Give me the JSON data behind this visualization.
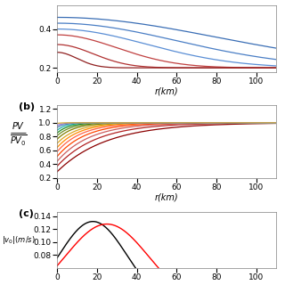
{
  "r_max": 110,
  "r_points": 500,
  "panel_a": {
    "ylim": [
      0.18,
      0.52
    ],
    "yticks": [
      0.2,
      0.4
    ],
    "colors": [
      "#1c6bb0",
      "#3a7fc1",
      "#5b8fd1",
      "#2060a0",
      "#c44040",
      "#c85050",
      "#c86060",
      "#d07070",
      "#b03030",
      "#903030",
      "#702020",
      "#501010"
    ]
  },
  "panel_b": {
    "ylim": [
      0.2,
      1.25
    ],
    "yticks": [
      0.2,
      0.4,
      0.6,
      0.8,
      1.0,
      1.2
    ],
    "n_curves": 14,
    "y0_values": [
      0.29,
      0.37,
      0.44,
      0.51,
      0.58,
      0.64,
      0.7,
      0.76,
      0.81,
      0.85,
      0.89,
      0.93,
      0.96,
      0.99
    ],
    "decay_values": [
      0.04,
      0.05,
      0.06,
      0.07,
      0.08,
      0.09,
      0.1,
      0.12,
      0.14,
      0.17,
      0.21,
      0.26,
      0.35,
      0.55
    ],
    "colors": [
      "#8B0000",
      "#B22222",
      "#CD5C5C",
      "#FF4500",
      "#FF6347",
      "#FF8C00",
      "#DAA520",
      "#808000",
      "#6B8E23",
      "#228B22",
      "#20B2AA",
      "#4682B4",
      "#9370DB",
      "#D4AF37"
    ]
  },
  "panel_c": {
    "ylim": [
      0.06,
      0.147
    ],
    "yticks": [
      0.08,
      0.1,
      0.12,
      0.14
    ],
    "r_peak_black": 18,
    "r_peak_red": 25,
    "sigma_black": 17,
    "sigma_red": 21,
    "amp_black": 0.132,
    "amp_red": 0.128
  },
  "xlabel": "r(km)",
  "xticks": [
    0,
    20,
    40,
    60,
    80,
    100
  ],
  "background": "#ffffff",
  "label_fontsize": 7,
  "tick_fontsize": 6.5
}
